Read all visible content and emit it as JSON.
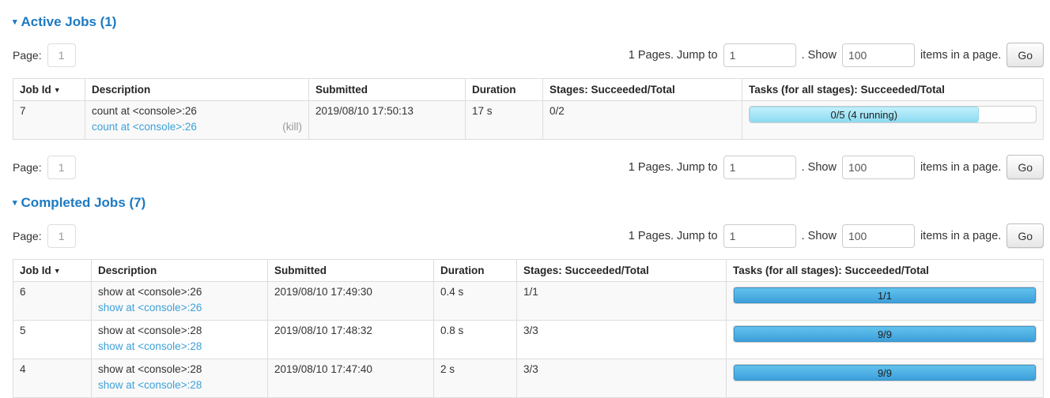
{
  "colors": {
    "section_header_blue": "#1d7ac2",
    "link_blue": "#3da0d8",
    "running_bar_blue": "#8cdcf2",
    "succeeded_bar_blue": "#43aae2",
    "stripe_gray": "#f9f9f9"
  },
  "pagination": {
    "page_label": "Page:",
    "page_value": "1",
    "pages_text": "1 Pages. Jump to",
    "jump_value": "1",
    "show_text": ". Show",
    "show_value": "100",
    "items_text": "items in a page.",
    "go_label": "Go"
  },
  "active_jobs": {
    "collapse_arrow": "▾",
    "title": "Active Jobs (1)",
    "sort_arrow": "▼",
    "columns": [
      "Job Id",
      "Description",
      "Submitted",
      "Duration",
      "Stages: Succeeded/Total",
      "Tasks (for all stages): Succeeded/Total"
    ],
    "rows": [
      {
        "job_id": "7",
        "description": "count at <console>:26",
        "description_link": "count at <console>:26",
        "kill_label": "(kill)",
        "submitted": "2019/08/10 17:50:13",
        "duration": "17 s",
        "stages": "0/2",
        "tasks": {
          "label": "0/5 (4 running)",
          "width_pct": 80,
          "state": "running"
        }
      }
    ]
  },
  "completed_jobs": {
    "collapse_arrow": "▾",
    "title": "Completed Jobs (7)",
    "sort_arrow": "▼",
    "columns": [
      "Job Id",
      "Description",
      "Submitted",
      "Duration",
      "Stages: Succeeded/Total",
      "Tasks (for all stages): Succeeded/Total"
    ],
    "rows": [
      {
        "job_id": "6",
        "description": "show at <console>:26",
        "description_link": "show at <console>:26",
        "submitted": "2019/08/10 17:49:30",
        "duration": "0.4 s",
        "stages": "1/1",
        "tasks": {
          "label": "1/1",
          "width_pct": 100,
          "state": "succeeded"
        }
      },
      {
        "job_id": "5",
        "description": "show at <console>:28",
        "description_link": "show at <console>:28",
        "submitted": "2019/08/10 17:48:32",
        "duration": "0.8 s",
        "stages": "3/3",
        "tasks": {
          "label": "9/9",
          "width_pct": 100,
          "state": "succeeded"
        }
      },
      {
        "job_id": "4",
        "description": "show at <console>:28",
        "description_link": "show at <console>:28",
        "submitted": "2019/08/10 17:47:40",
        "duration": "2 s",
        "stages": "3/3",
        "tasks": {
          "label": "9/9",
          "width_pct": 100,
          "state": "succeeded"
        }
      }
    ]
  }
}
